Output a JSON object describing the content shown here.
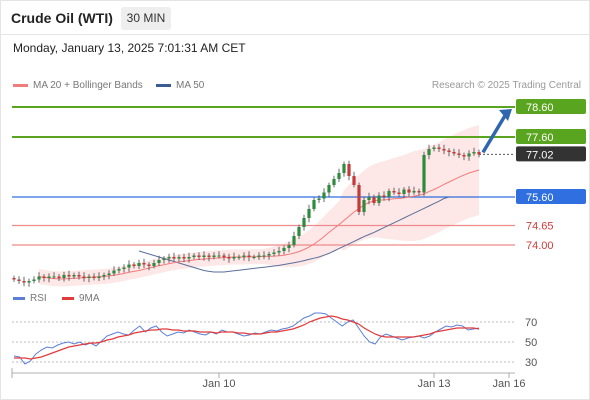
{
  "header": {
    "title": "Crude Oil (WTI)",
    "timeframe": "30 MIN",
    "datetime": "Monday, January 13, 2025 7:01:31 AM CET"
  },
  "legend": {
    "ma20_label": "MA 20 + Bollinger Bands",
    "ma50_label": "MA 50",
    "rsi_label": "RSI",
    "ma9_label": "9MA"
  },
  "copyright": "Research © 2025 Trading Central",
  "colors": {
    "resistance": "#5aa51f",
    "pivot": "#2f6fe0",
    "support": "#f08a8a",
    "current": "#333333",
    "ma20": "#f27b7b",
    "ma50": "#5b6f9a",
    "band": "#fde3e3",
    "candle_up": "#2e8b3e",
    "candle_down": "#c43a3a",
    "rsi": "#5b7fd6",
    "rsi_ma": "#e23b3b",
    "arrow": "#2f66b0"
  },
  "chart_data": {
    "type": "candlestick",
    "price_levels": [
      {
        "name": "resistance",
        "value": 78.6,
        "label": "78.60"
      },
      {
        "name": "resistance",
        "value": 77.6,
        "label": "77.60"
      },
      {
        "name": "current",
        "value": 77.02,
        "label": "77.02"
      },
      {
        "name": "pivot",
        "value": 75.6,
        "label": "75.60"
      },
      {
        "name": "support",
        "value": 74.65,
        "label": "74.65"
      },
      {
        "name": "support",
        "value": 74.0,
        "label": "74.00"
      }
    ],
    "price_range": [
      72.5,
      79.0
    ],
    "x_tick_labels": [
      {
        "label": "Jan 10",
        "index": 41
      },
      {
        "label": "Jan 13",
        "index": 84
      },
      {
        "label": "Jan 16",
        "index": 99
      }
    ],
    "closes": [
      72.85,
      72.8,
      72.75,
      72.8,
      72.85,
      72.95,
      72.9,
      72.95,
      72.95,
      72.9,
      73.0,
      72.95,
      73.0,
      72.95,
      72.9,
      72.95,
      72.9,
      72.95,
      73.0,
      73.05,
      73.15,
      73.2,
      73.25,
      73.35,
      73.3,
      73.4,
      73.35,
      73.3,
      73.4,
      73.5,
      73.55,
      73.6,
      73.55,
      73.6,
      73.55,
      73.6,
      73.65,
      73.6,
      73.65,
      73.6,
      73.65,
      73.65,
      73.6,
      73.55,
      73.6,
      73.6,
      73.65,
      73.6,
      73.6,
      73.65,
      73.65,
      73.7,
      73.75,
      73.8,
      73.9,
      74.0,
      74.3,
      74.6,
      74.9,
      75.2,
      75.5,
      75.55,
      75.75,
      76.0,
      76.2,
      76.4,
      76.7,
      76.3,
      76.0,
      75.1,
      75.5,
      75.6,
      75.4,
      75.65,
      75.6,
      75.8,
      75.75,
      75.7,
      75.85,
      75.75,
      75.8,
      75.75,
      77.0,
      77.2,
      77.25,
      77.2,
      77.15,
      77.1,
      77.05,
      77.0,
      76.95,
      77.05,
      77.1,
      77.02
    ],
    "ma20": [
      72.95,
      72.92,
      72.9,
      72.88,
      72.87,
      72.87,
      72.88,
      72.89,
      72.9,
      72.91,
      72.92,
      72.93,
      72.94,
      72.95,
      72.97,
      72.99,
      73.02,
      73.05,
      73.09,
      73.12,
      73.15,
      73.19,
      73.23,
      73.27,
      73.31,
      73.34,
      73.38,
      73.41,
      73.44,
      73.46,
      73.48,
      73.5,
      73.52,
      73.53,
      73.55,
      73.56,
      73.57,
      73.58,
      73.59,
      73.6,
      73.6,
      73.6,
      73.61,
      73.61,
      73.61,
      73.62,
      73.62,
      73.63,
      73.64,
      73.66,
      73.69,
      73.73,
      73.78,
      73.85,
      73.93,
      74.03,
      74.15,
      74.28,
      74.42,
      74.55,
      74.68,
      74.82,
      74.96,
      75.1,
      75.22,
      75.33,
      75.42,
      75.47,
      75.5,
      75.5,
      75.52,
      75.54,
      75.55,
      75.57,
      75.6,
      75.63,
      75.66,
      75.7,
      75.78,
      75.85,
      75.93,
      76.02,
      76.1,
      76.18,
      76.26,
      76.33,
      76.4,
      76.45,
      76.5
    ],
    "ma50": [
      73.8,
      73.75,
      73.7,
      73.65,
      73.6,
      73.55,
      73.5,
      73.45,
      73.4,
      73.35,
      73.3,
      73.25,
      73.2,
      73.15,
      73.12,
      73.1,
      73.1,
      73.1,
      73.12,
      73.14,
      73.16,
      73.18,
      73.2,
      73.22,
      73.24,
      73.26,
      73.28,
      73.3,
      73.32,
      73.35,
      73.38,
      73.41,
      73.44,
      73.48,
      73.52,
      73.56,
      73.6,
      73.66,
      73.72,
      73.8,
      73.88,
      73.96,
      74.04,
      74.12,
      74.2,
      74.28,
      74.35,
      74.42,
      74.5,
      74.58,
      74.66,
      74.74,
      74.82,
      74.9,
      74.98,
      75.06,
      75.14,
      75.22,
      75.3,
      75.38,
      75.46,
      75.55,
      75.6
    ],
    "rsi_ticks": [
      70,
      50,
      30
    ],
    "rsi_range": [
      22,
      82
    ],
    "rsi": [
      36,
      35,
      28,
      31,
      38,
      42,
      45,
      44,
      47,
      49,
      50,
      48,
      50,
      47,
      49,
      46,
      51,
      56,
      58,
      60,
      58,
      57,
      62,
      66,
      60,
      64,
      66,
      60,
      56,
      58,
      60,
      59,
      62,
      60,
      58,
      57,
      60,
      58,
      62,
      60,
      60,
      58,
      56,
      57,
      59,
      58,
      60,
      62,
      61,
      63,
      64,
      66,
      70,
      74,
      76,
      79,
      79,
      78,
      74,
      70,
      66,
      70,
      72,
      64,
      56,
      50,
      48,
      55,
      58,
      56,
      54,
      52,
      54,
      55,
      56,
      54,
      56,
      60,
      63,
      66,
      65,
      67,
      66,
      62,
      63,
      64
    ],
    "rsi_ma": [
      34,
      34,
      34,
      33,
      34,
      35,
      37,
      39,
      41,
      43,
      45,
      46,
      47,
      48,
      49,
      49,
      50,
      52,
      53,
      55,
      56,
      57,
      59,
      60,
      61,
      62,
      62,
      63,
      63,
      62,
      62,
      61,
      61,
      61,
      60,
      60,
      60,
      59,
      60,
      60,
      60,
      59,
      59,
      58,
      58,
      58,
      59,
      60,
      60,
      61,
      62,
      63,
      65,
      67,
      70,
      72,
      74,
      75,
      76,
      75,
      73,
      72,
      70,
      68,
      64,
      61,
      58,
      56,
      55,
      55,
      55,
      55,
      55,
      55,
      56,
      57,
      58,
      60,
      61,
      62,
      63,
      64,
      64,
      64,
      64,
      63
    ]
  }
}
